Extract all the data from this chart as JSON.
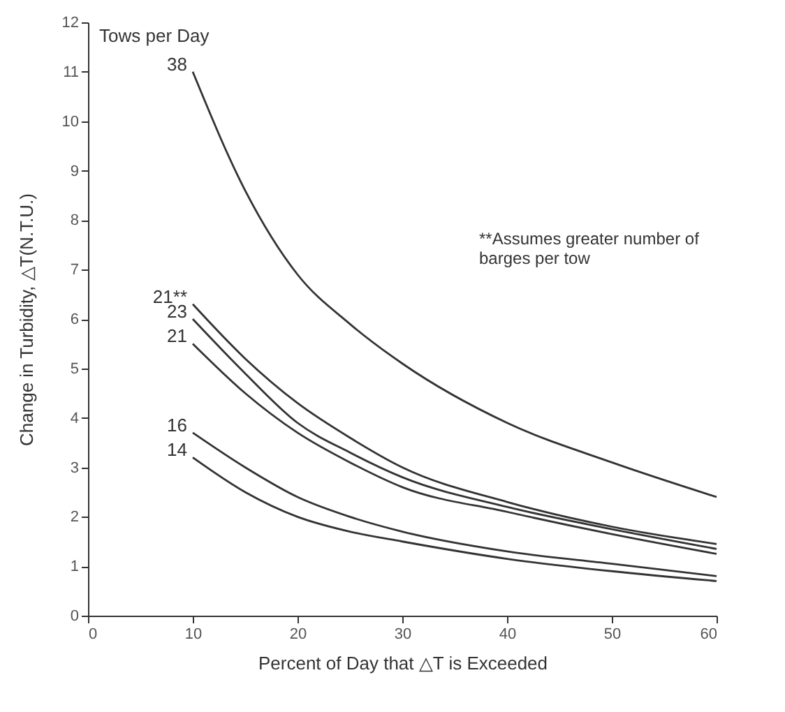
{
  "chart_data": {
    "type": "line",
    "xlabel": "Percent of Day that △T is Exceeded",
    "ylabel": "Change in Turbidity,  △T(N.T.U.)",
    "x": [
      10,
      15,
      20,
      25,
      30,
      40,
      50,
      60
    ],
    "series": [
      {
        "name": "38",
        "color": "#333333",
        "values": [
          11.0,
          8.6,
          6.9,
          5.9,
          5.1,
          3.9,
          3.1,
          2.4
        ]
      },
      {
        "name": "21**",
        "color": "#333333",
        "values": [
          6.3,
          5.2,
          4.3,
          3.6,
          3.0,
          2.3,
          1.8,
          1.45
        ]
      },
      {
        "name": "23",
        "color": "#333333",
        "values": [
          6.0,
          4.9,
          3.9,
          3.3,
          2.8,
          2.2,
          1.75,
          1.35
        ]
      },
      {
        "name": "21",
        "color": "#333333",
        "values": [
          5.5,
          4.5,
          3.7,
          3.1,
          2.6,
          2.1,
          1.65,
          1.25
        ]
      },
      {
        "name": "16",
        "color": "#333333",
        "values": [
          3.7,
          3.0,
          2.4,
          2.0,
          1.7,
          1.3,
          1.05,
          0.8
        ]
      },
      {
        "name": "14",
        "color": "#333333",
        "values": [
          3.2,
          2.5,
          2.0,
          1.7,
          1.5,
          1.15,
          0.9,
          0.7
        ]
      }
    ],
    "annotations": [
      "Tows per Day",
      "**Assumes greater number of\nbarges per tow"
    ],
    "xlim": [
      0,
      60
    ],
    "xticks": [
      0,
      10,
      20,
      30,
      40,
      50,
      60
    ],
    "ylim": [
      0,
      12
    ],
    "yticks": [
      0,
      1,
      2,
      3,
      4,
      5,
      6,
      7,
      8,
      9,
      10,
      11,
      12
    ],
    "grid": false,
    "legend": false,
    "marker": "none",
    "line_style": "solid"
  }
}
